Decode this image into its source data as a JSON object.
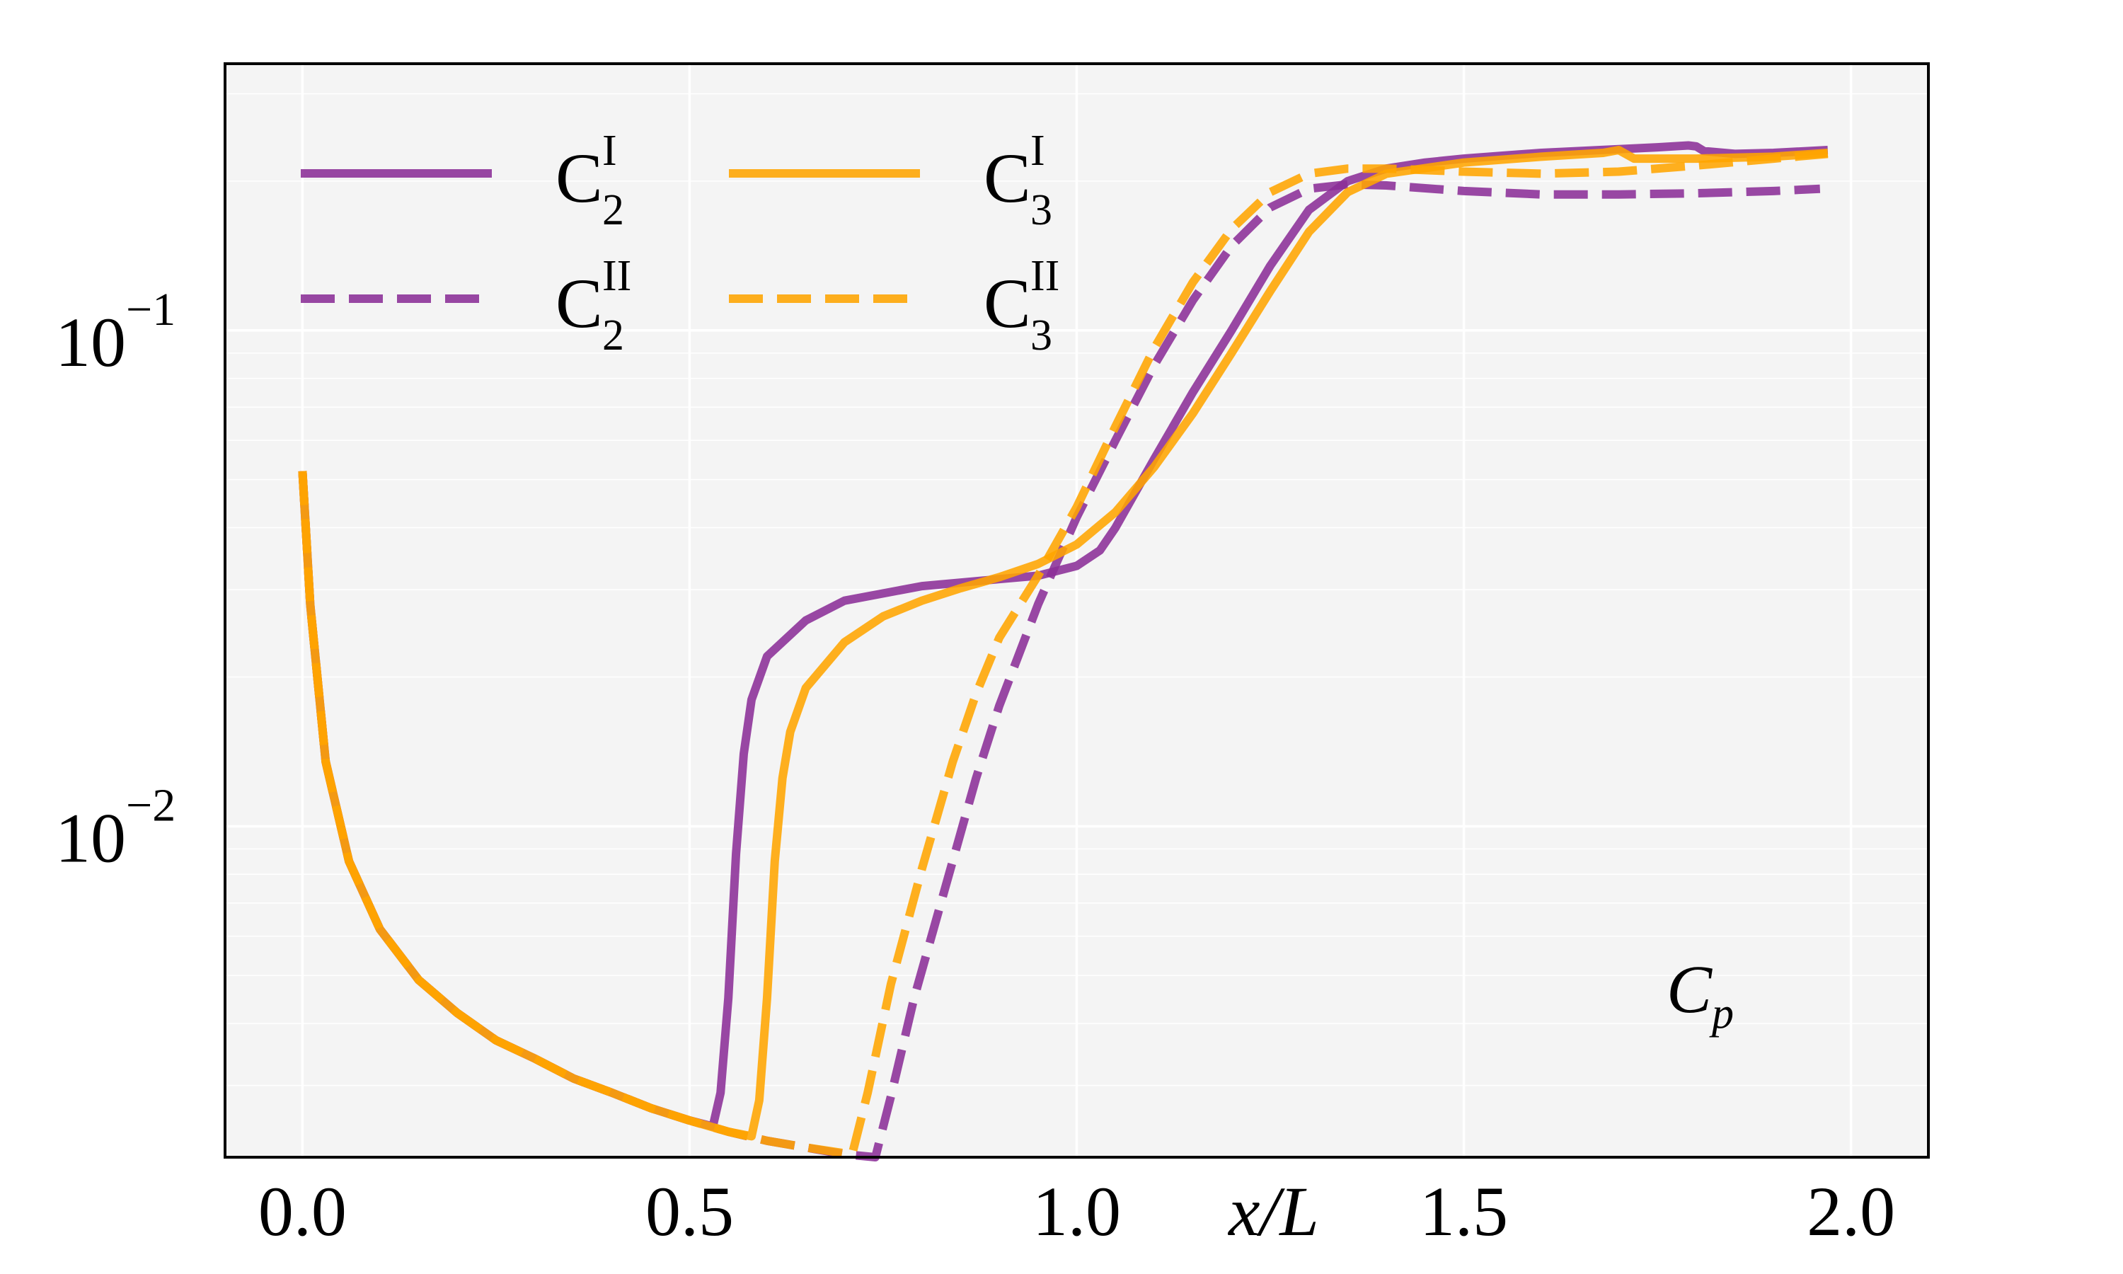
{
  "chart_data": {
    "type": "line",
    "title": "",
    "xlabel": "x/L",
    "ylabel": "",
    "annotation": {
      "base": "C",
      "sub": "p"
    },
    "xlim": [
      -0.1,
      2.1
    ],
    "ylim": [
      0.00215,
      0.345
    ],
    "yscale": "log",
    "grid": true,
    "x_ticks": [
      0.0,
      0.5,
      1.0,
      1.5,
      2.0
    ],
    "x_tick_labels": [
      "0.0",
      "0.5",
      "1.0",
      "1.5",
      "2.0"
    ],
    "y_ticks": [
      {
        "value": 0.1,
        "base": "10",
        "exp": "−1"
      },
      {
        "value": 0.01,
        "base": "10",
        "exp": "−2"
      }
    ],
    "minor_y_ticks": [
      0.003,
      0.004,
      0.005,
      0.006,
      0.007,
      0.008,
      0.009,
      0.02,
      0.03,
      0.04,
      0.05,
      0.06,
      0.07,
      0.08,
      0.09,
      0.2,
      0.3
    ],
    "legend_position": "upper-left",
    "series": [
      {
        "name": "C2 I",
        "legend_base": "C",
        "legend_sub": "2",
        "legend_sup": "I",
        "color": "#8B2F97",
        "style": "solid",
        "x": [
          0,
          0.01,
          0.03,
          0.06,
          0.1,
          0.15,
          0.2,
          0.25,
          0.3,
          0.35,
          0.4,
          0.45,
          0.5,
          0.53,
          0.54,
          0.55,
          0.56,
          0.57,
          0.58,
          0.6,
          0.65,
          0.7,
          0.8,
          0.9,
          0.95,
          1.0,
          1.03,
          1.05,
          1.1,
          1.15,
          1.2,
          1.25,
          1.3,
          1.35,
          1.4,
          1.45,
          1.5,
          1.55,
          1.6,
          1.7,
          1.75,
          1.79,
          1.8,
          1.81,
          1.85,
          1.9,
          1.97
        ],
        "y": [
          0.052,
          0.028,
          0.0135,
          0.0085,
          0.0062,
          0.0049,
          0.0042,
          0.0037,
          0.0034,
          0.0031,
          0.0029,
          0.0027,
          0.00255,
          0.00248,
          0.0029,
          0.0045,
          0.0088,
          0.014,
          0.018,
          0.022,
          0.026,
          0.0285,
          0.0305,
          0.0315,
          0.032,
          0.0335,
          0.036,
          0.04,
          0.055,
          0.075,
          0.1,
          0.135,
          0.175,
          0.2,
          0.212,
          0.218,
          0.222,
          0.225,
          0.228,
          0.232,
          0.234,
          0.236,
          0.235,
          0.23,
          0.227,
          0.228,
          0.231
        ]
      },
      {
        "name": "C2 II",
        "legend_base": "C",
        "legend_sub": "2",
        "legend_sup": "II",
        "color": "#8B2F97",
        "style": "dashed",
        "x": [
          0,
          0.01,
          0.03,
          0.06,
          0.1,
          0.15,
          0.2,
          0.25,
          0.3,
          0.35,
          0.4,
          0.45,
          0.5,
          0.55,
          0.6,
          0.65,
          0.7,
          0.74,
          0.76,
          0.79,
          0.83,
          0.87,
          0.9,
          0.95,
          1.0,
          1.05,
          1.1,
          1.15,
          1.2,
          1.25,
          1.3,
          1.35,
          1.4,
          1.5,
          1.6,
          1.7,
          1.8,
          1.9,
          1.96
        ],
        "y": [
          0.052,
          0.028,
          0.0135,
          0.0085,
          0.0062,
          0.0049,
          0.0042,
          0.0037,
          0.0034,
          0.0031,
          0.0029,
          0.0027,
          0.00255,
          0.00242,
          0.00232,
          0.00225,
          0.00218,
          0.00215,
          0.00285,
          0.0045,
          0.0075,
          0.0125,
          0.0175,
          0.028,
          0.042,
          0.06,
          0.085,
          0.115,
          0.148,
          0.177,
          0.193,
          0.197,
          0.196,
          0.191,
          0.188,
          0.188,
          0.189,
          0.191,
          0.193
        ]
      },
      {
        "name": "C3 I",
        "legend_base": "C",
        "legend_sub": "3",
        "legend_sup": "I",
        "color": "#FFA500",
        "style": "solid",
        "x": [
          0,
          0.01,
          0.03,
          0.06,
          0.1,
          0.15,
          0.2,
          0.25,
          0.3,
          0.35,
          0.4,
          0.45,
          0.5,
          0.55,
          0.58,
          0.59,
          0.6,
          0.61,
          0.62,
          0.63,
          0.65,
          0.7,
          0.75,
          0.8,
          0.85,
          0.9,
          0.95,
          1.0,
          1.05,
          1.1,
          1.15,
          1.2,
          1.25,
          1.3,
          1.35,
          1.4,
          1.5,
          1.6,
          1.68,
          1.7,
          1.72,
          1.8,
          1.9,
          1.97
        ],
        "y": [
          0.052,
          0.028,
          0.0135,
          0.0085,
          0.0062,
          0.0049,
          0.0042,
          0.0037,
          0.0034,
          0.0031,
          0.0029,
          0.0027,
          0.00255,
          0.00242,
          0.00237,
          0.0028,
          0.0045,
          0.0085,
          0.0125,
          0.0155,
          0.019,
          0.0235,
          0.0265,
          0.0285,
          0.0302,
          0.0318,
          0.0338,
          0.037,
          0.043,
          0.053,
          0.068,
          0.09,
          0.12,
          0.158,
          0.19,
          0.207,
          0.218,
          0.224,
          0.228,
          0.231,
          0.222,
          0.222,
          0.224,
          0.228
        ]
      },
      {
        "name": "C3 II",
        "legend_base": "C",
        "legend_sub": "3",
        "legend_sup": "II",
        "color": "#FFA500",
        "style": "dashed",
        "x": [
          0,
          0.01,
          0.03,
          0.06,
          0.1,
          0.15,
          0.2,
          0.25,
          0.3,
          0.35,
          0.4,
          0.45,
          0.5,
          0.55,
          0.6,
          0.65,
          0.7,
          0.71,
          0.73,
          0.76,
          0.8,
          0.84,
          0.87,
          0.9,
          0.95,
          1.0,
          1.05,
          1.1,
          1.15,
          1.2,
          1.25,
          1.3,
          1.35,
          1.4,
          1.5,
          1.6,
          1.7,
          1.8,
          1.9,
          1.97
        ],
        "y": [
          0.052,
          0.028,
          0.0135,
          0.0085,
          0.0062,
          0.0049,
          0.0042,
          0.0037,
          0.0034,
          0.0031,
          0.0029,
          0.0027,
          0.00255,
          0.00242,
          0.00232,
          0.00225,
          0.00219,
          0.00218,
          0.0029,
          0.0048,
          0.0082,
          0.0135,
          0.0185,
          0.024,
          0.032,
          0.044,
          0.064,
          0.092,
          0.125,
          0.16,
          0.19,
          0.207,
          0.212,
          0.212,
          0.209,
          0.207,
          0.209,
          0.215,
          0.222,
          0.227
        ]
      }
    ]
  }
}
